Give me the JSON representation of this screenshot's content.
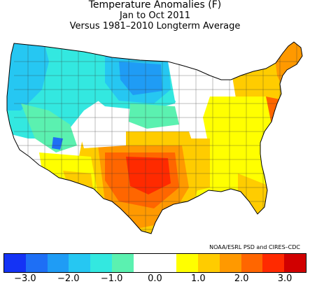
{
  "title": {
    "line1": "Temperature Anomalies (F)",
    "line2": "Jan to Oct 2011",
    "line3": "Versus 1981–2010 Longterm Average"
  },
  "credit": "NOAA/ESRL PSD and CIRES–CDC",
  "legend": {
    "colors": [
      "#1433f5",
      "#1e6ff5",
      "#1f9cf5",
      "#26c7f2",
      "#33e8e0",
      "#5bf1b0",
      "#ffffff",
      "#ffffff",
      "#ffff00",
      "#ffcc00",
      "#ff9900",
      "#ff6600",
      "#ff2a00",
      "#d10000"
    ],
    "ticks": [
      "−3.0",
      "−2.0",
      "−1.0",
      "0.0",
      "1.0",
      "2.0",
      "3.0"
    ],
    "tick_values": [
      -3.0,
      -2.0,
      -1.0,
      0.0,
      1.0,
      2.0,
      3.0
    ],
    "range": [
      -3.5,
      3.5
    ],
    "bin_width": 0.5
  }
}
